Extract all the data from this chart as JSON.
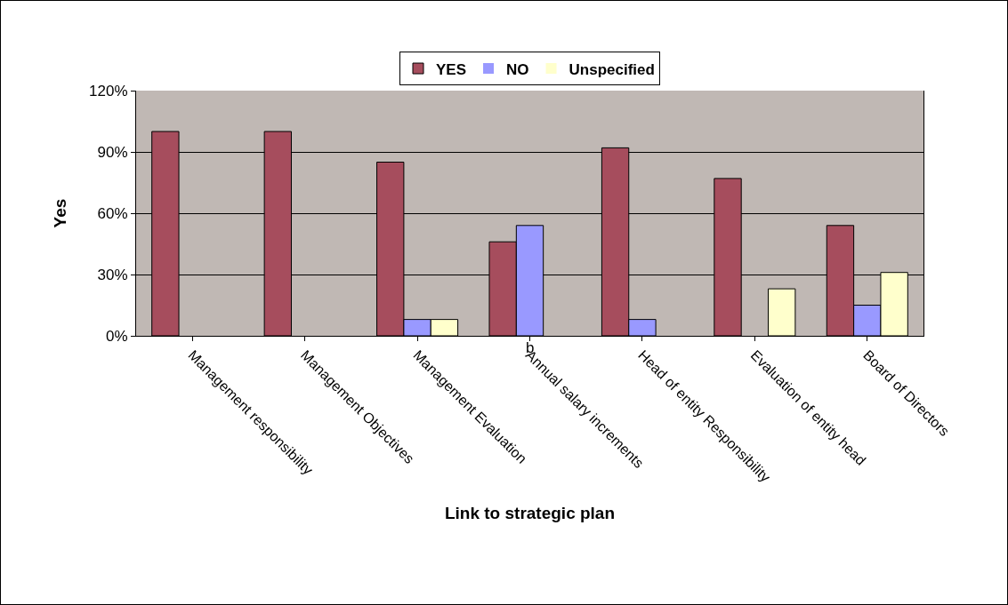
{
  "chart_data": {
    "type": "bar",
    "xlabel": "Link to strategic plan",
    "ylabel": "Yes",
    "categories": [
      "Management responsibility",
      "Management Objectives",
      "Management Evaluation",
      "Annual salary increments",
      "Head of entity Responsibility",
      "Evaluation of entity head",
      "Board of Directors"
    ],
    "series": [
      {
        "name": "YES",
        "color": "#a64d5d",
        "values": [
          100,
          100,
          85,
          46,
          92,
          77,
          54
        ]
      },
      {
        "name": "NO",
        "color": "#9999ff",
        "values": [
          0,
          0,
          8,
          54,
          8,
          0,
          15
        ]
      },
      {
        "name": "Unspecified",
        "color": "#ffffcc",
        "values": [
          0,
          0,
          8,
          0,
          0,
          23,
          31
        ]
      }
    ],
    "ylim": [
      0,
      120
    ],
    "yticks": [
      {
        "value": 0,
        "label": "0%"
      },
      {
        "value": 30,
        "label": "30%"
      },
      {
        "value": 60,
        "label": "60%"
      },
      {
        "value": 90,
        "label": "90%"
      },
      {
        "value": 120,
        "label": "120%"
      }
    ],
    "grid": "y",
    "legend": "top",
    "annotations": [
      "b"
    ]
  }
}
